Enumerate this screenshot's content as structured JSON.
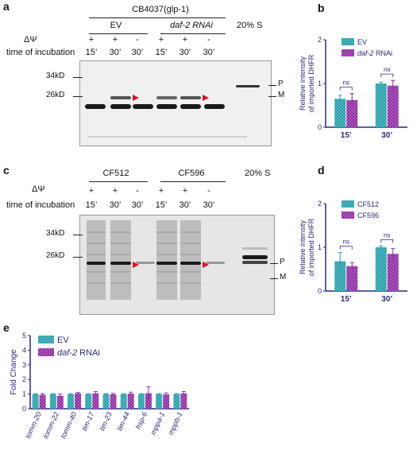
{
  "panels": {
    "a": {
      "label": "a",
      "strain": "CB4037(glp-1)",
      "groups": [
        "EV",
        "daf-2 RNAi"
      ],
      "standard": "20% S",
      "dpsi_label": "ΔΨ",
      "time_label": "time of incubation",
      "dpsi_marks": [
        "+",
        "+",
        "-",
        "+",
        "+",
        "-"
      ],
      "times": [
        "15’",
        "30’",
        "30’",
        "15’",
        "30’",
        "30’"
      ],
      "markers": [
        "34kD",
        "26kD"
      ],
      "band_labels": [
        "P",
        "M"
      ]
    },
    "c": {
      "label": "c",
      "groups": [
        "CF512",
        "CF596"
      ],
      "standard": "20% S",
      "dpsi_label": "ΔΨ",
      "time_label": "time of incubation",
      "dpsi_marks": [
        "+",
        "+",
        "-",
        "+",
        "+",
        "-"
      ],
      "times": [
        "15’",
        "30’",
        "30’",
        "15’",
        "30’",
        "30’"
      ],
      "markers": [
        "34kD",
        "26kD"
      ],
      "band_labels": [
        "P",
        "M"
      ]
    },
    "b": {
      "label": "b"
    },
    "d": {
      "label": "d"
    },
    "e": {
      "label": "e"
    }
  },
  "colors": {
    "teal": "#2e9ea8",
    "purple": "#8a2f9c",
    "axis": "#2b2b7a"
  },
  "chart_data": [
    {
      "id": "b",
      "type": "bar",
      "categories": [
        "15’",
        "30’"
      ],
      "series": [
        {
          "name": "EV",
          "values": [
            0.65,
            1.0
          ],
          "errors": [
            0.08,
            0.03
          ]
        },
        {
          "name": "daf-2 RNAi",
          "values": [
            0.62,
            0.95
          ],
          "errors": [
            0.15,
            0.12
          ]
        }
      ],
      "ylabel": "Relative intensity of imported DHFR",
      "ylim": [
        0,
        2
      ],
      "yticks": [
        0,
        1,
        2
      ],
      "annotations": [
        "ns",
        "ns"
      ],
      "legend": "top-right"
    },
    {
      "id": "d",
      "type": "bar",
      "categories": [
        "15’",
        "30’"
      ],
      "series": [
        {
          "name": "CF512",
          "values": [
            0.68,
            1.0
          ],
          "errors": [
            0.2,
            0.03
          ]
        },
        {
          "name": "CF596",
          "values": [
            0.57,
            0.85
          ],
          "errors": [
            0.08,
            0.12
          ]
        }
      ],
      "ylabel": "Relative intensity of imported DHFR",
      "ylim": [
        0,
        2
      ],
      "yticks": [
        0,
        1,
        2
      ],
      "annotations": [
        "ns",
        "ns"
      ],
      "legend": "top-right"
    },
    {
      "id": "e",
      "type": "bar",
      "categories": [
        "tomm-20",
        "tomm-22",
        "tomm-40",
        "tim-17",
        "tim-23",
        "tim-44",
        "hsp-6",
        "mppa-1",
        "mppb-1"
      ],
      "series": [
        {
          "name": "EV",
          "values": [
            1.0,
            1.0,
            1.0,
            1.0,
            1.0,
            1.0,
            1.0,
            1.0,
            1.0
          ],
          "errors": [
            0.03,
            0.03,
            0.03,
            0.03,
            0.03,
            0.03,
            0.03,
            0.03,
            0.03
          ]
        },
        {
          "name": "daf-2 RNAi",
          "values": [
            0.95,
            0.88,
            1.05,
            1.05,
            0.98,
            1.03,
            1.06,
            0.98,
            1.05
          ],
          "errors": [
            0.08,
            0.12,
            0.06,
            0.12,
            0.07,
            0.1,
            0.45,
            0.1,
            0.12
          ]
        }
      ],
      "ylabel": "Fold Change",
      "ylim": [
        0,
        5
      ],
      "yticks": [
        0,
        1,
        2,
        3,
        4,
        5
      ],
      "legend": "top-left"
    }
  ]
}
